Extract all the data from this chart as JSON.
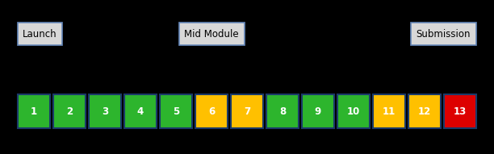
{
  "weeks": [
    1,
    2,
    3,
    4,
    5,
    6,
    7,
    8,
    9,
    10,
    11,
    12,
    13
  ],
  "colors": [
    "#2DB52D",
    "#2DB52D",
    "#2DB52D",
    "#2DB52D",
    "#2DB52D",
    "#FFC000",
    "#FFC000",
    "#2DB52D",
    "#2DB52D",
    "#2DB52D",
    "#FFC000",
    "#FFC000",
    "#DD0000"
  ],
  "background": "#000000",
  "box_bg": "#D8D8D8",
  "box_edge": "#6688BB",
  "week_edge": "#1A3A6A",
  "label_launch": "Launch",
  "label_mid": "Mid Module",
  "label_submission": "Submission",
  "text_color": "#FFFFFF",
  "label_text_color": "#000000",
  "fig_width": 6.12,
  "fig_height": 1.91,
  "dpi": 100
}
